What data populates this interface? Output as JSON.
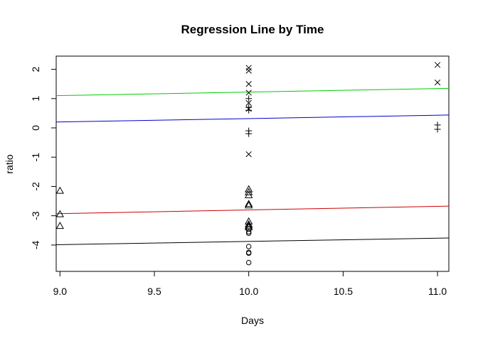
{
  "chart_data": {
    "type": "scatter",
    "title": "Regression Line by Time",
    "xlabel": "Days",
    "ylabel": "ratio",
    "xlim": [
      8.98,
      11.06
    ],
    "ylim": [
      -4.9,
      2.45
    ],
    "grid": false,
    "xticks": [
      9.0,
      9.5,
      10.0,
      10.5,
      11.0
    ],
    "xtick_labels": [
      "9.0",
      "9.5",
      "10.0",
      "10.5",
      "11.0"
    ],
    "yticks": [
      -4,
      -3,
      -2,
      -1,
      0,
      1,
      2
    ],
    "ytick_labels": [
      "-4",
      "-3",
      "-2",
      "-1",
      "0",
      "1",
      "2"
    ],
    "series": [
      {
        "marker": "circle",
        "color": "#000000",
        "points": [
          [
            10,
            -3.45
          ],
          [
            10,
            -3.55
          ],
          [
            10,
            -3.6
          ],
          [
            10,
            -4.05
          ],
          [
            10,
            -4.25
          ],
          [
            10,
            -4.28
          ],
          [
            10,
            -4.6
          ]
        ]
      },
      {
        "marker": "triangle",
        "color": "#000000",
        "points": [
          [
            9,
            -2.15
          ],
          [
            9,
            -2.95
          ],
          [
            9,
            -3.35
          ],
          [
            10,
            -2.1
          ],
          [
            10,
            -2.2
          ],
          [
            10,
            -2.3
          ],
          [
            10,
            -2.6
          ],
          [
            10,
            -2.65
          ],
          [
            10,
            -3.2
          ],
          [
            10,
            -3.3
          ],
          [
            10,
            -3.35
          ],
          [
            10,
            -3.4
          ]
        ]
      },
      {
        "marker": "plus",
        "color": "#000000",
        "points": [
          [
            10,
            -0.1
          ],
          [
            10,
            -0.2
          ],
          [
            10,
            0.6
          ],
          [
            10,
            0.7
          ],
          [
            10,
            1.0
          ],
          [
            11,
            0.1
          ],
          [
            11,
            -0.05
          ]
        ]
      },
      {
        "marker": "x",
        "color": "#000000",
        "points": [
          [
            10,
            2.05
          ],
          [
            10,
            1.95
          ],
          [
            10,
            1.5
          ],
          [
            10,
            1.2
          ],
          [
            10,
            0.85
          ],
          [
            10,
            0.65
          ],
          [
            10,
            -0.9
          ],
          [
            11,
            2.15
          ],
          [
            11,
            1.55
          ]
        ]
      }
    ],
    "lines": [
      {
        "color": "#000000",
        "x": [
          8.98,
          11.06
        ],
        "y": [
          -3.99,
          -3.76
        ]
      },
      {
        "color": "#cc0000",
        "x": [
          8.98,
          11.06
        ],
        "y": [
          -2.93,
          -2.67
        ]
      },
      {
        "color": "#0000cc",
        "x": [
          8.98,
          11.06
        ],
        "y": [
          0.2,
          0.44
        ]
      },
      {
        "color": "#00cc00",
        "x": [
          8.98,
          11.06
        ],
        "y": [
          1.1,
          1.35
        ]
      }
    ]
  }
}
